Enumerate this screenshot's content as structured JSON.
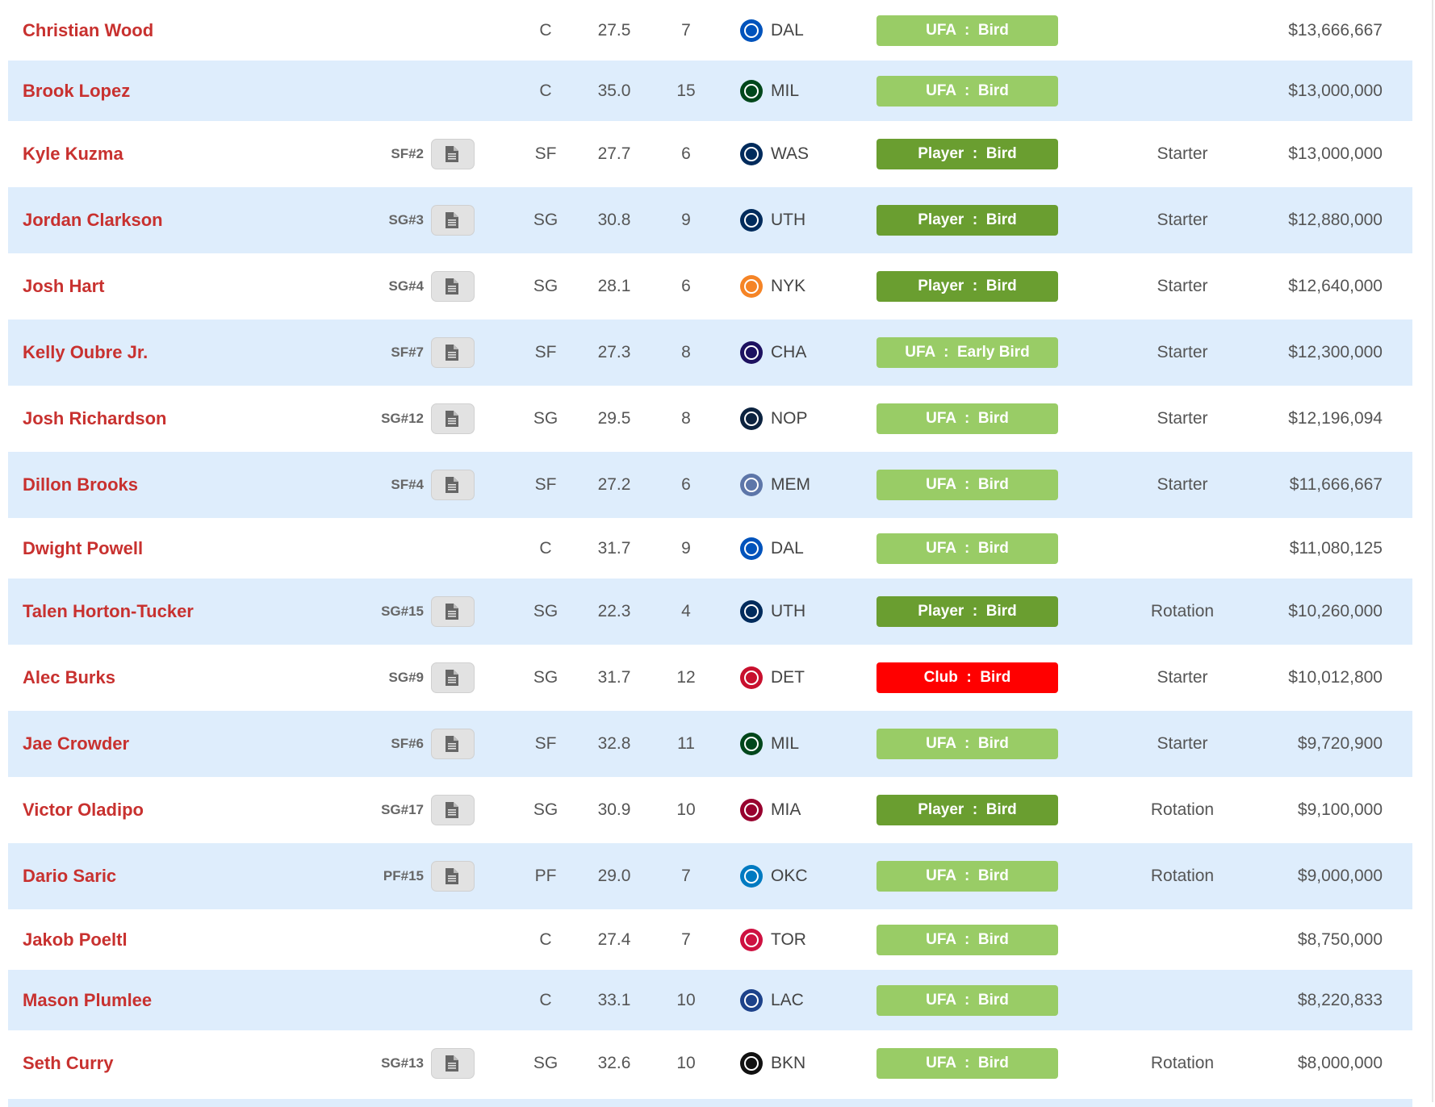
{
  "colors": {
    "name": "#c8312f",
    "stripe": "#deedfc",
    "ufa": "#99cc66",
    "player": "#6a9e30",
    "club": "#ff0000"
  },
  "doc_icon": "document-icon",
  "players": [
    {
      "name": "Christian Wood",
      "rank": "",
      "pos": "C",
      "age": "27.5",
      "exp": "7",
      "team": "DAL",
      "badge": "UFA  :  Bird",
      "badge_type": "ufa",
      "role": "",
      "salary": "$13,666,667"
    },
    {
      "name": "Brook Lopez",
      "rank": "",
      "pos": "C",
      "age": "35.0",
      "exp": "15",
      "team": "MIL",
      "badge": "UFA  :  Bird",
      "badge_type": "ufa",
      "role": "",
      "salary": "$13,000,000"
    },
    {
      "name": "Kyle Kuzma",
      "rank": "SF#2",
      "pos": "SF",
      "age": "27.7",
      "exp": "6",
      "team": "WAS",
      "badge": "Player  :  Bird",
      "badge_type": "player",
      "role": "Starter",
      "salary": "$13,000,000"
    },
    {
      "name": "Jordan Clarkson",
      "rank": "SG#3",
      "pos": "SG",
      "age": "30.8",
      "exp": "9",
      "team": "UTH",
      "badge": "Player  :  Bird",
      "badge_type": "player",
      "role": "Starter",
      "salary": "$12,880,000"
    },
    {
      "name": "Josh Hart",
      "rank": "SG#4",
      "pos": "SG",
      "age": "28.1",
      "exp": "6",
      "team": "NYK",
      "badge": "Player  :  Bird",
      "badge_type": "player",
      "role": "Starter",
      "salary": "$12,640,000"
    },
    {
      "name": "Kelly Oubre Jr.",
      "rank": "SF#7",
      "pos": "SF",
      "age": "27.3",
      "exp": "8",
      "team": "CHA",
      "badge": "UFA  :  Early Bird",
      "badge_type": "ufa",
      "role": "Starter",
      "salary": "$12,300,000"
    },
    {
      "name": "Josh Richardson",
      "rank": "SG#12",
      "pos": "SG",
      "age": "29.5",
      "exp": "8",
      "team": "NOP",
      "badge": "UFA  :  Bird",
      "badge_type": "ufa",
      "role": "Starter",
      "salary": "$12,196,094"
    },
    {
      "name": "Dillon Brooks",
      "rank": "SF#4",
      "pos": "SF",
      "age": "27.2",
      "exp": "6",
      "team": "MEM",
      "badge": "UFA  :  Bird",
      "badge_type": "ufa",
      "role": "Starter",
      "salary": "$11,666,667"
    },
    {
      "name": "Dwight Powell",
      "rank": "",
      "pos": "C",
      "age": "31.7",
      "exp": "9",
      "team": "DAL",
      "badge": "UFA  :  Bird",
      "badge_type": "ufa",
      "role": "",
      "salary": "$11,080,125"
    },
    {
      "name": "Talen Horton-Tucker",
      "rank": "SG#15",
      "pos": "SG",
      "age": "22.3",
      "exp": "4",
      "team": "UTH",
      "badge": "Player  :  Bird",
      "badge_type": "player",
      "role": "Rotation",
      "salary": "$10,260,000"
    },
    {
      "name": "Alec Burks",
      "rank": "SG#9",
      "pos": "SG",
      "age": "31.7",
      "exp": "12",
      "team": "DET",
      "badge": "Club  :  Bird",
      "badge_type": "club",
      "role": "Starter",
      "salary": "$10,012,800"
    },
    {
      "name": "Jae Crowder",
      "rank": "SF#6",
      "pos": "SF",
      "age": "32.8",
      "exp": "11",
      "team": "MIL",
      "badge": "UFA  :  Bird",
      "badge_type": "ufa",
      "role": "Starter",
      "salary": "$9,720,900"
    },
    {
      "name": "Victor Oladipo",
      "rank": "SG#17",
      "pos": "SG",
      "age": "30.9",
      "exp": "10",
      "team": "MIA",
      "badge": "Player  :  Bird",
      "badge_type": "player",
      "role": "Rotation",
      "salary": "$9,100,000"
    },
    {
      "name": "Dario Saric",
      "rank": "PF#15",
      "pos": "PF",
      "age": "29.0",
      "exp": "7",
      "team": "OKC",
      "badge": "UFA  :  Bird",
      "badge_type": "ufa",
      "role": "Rotation",
      "salary": "$9,000,000"
    },
    {
      "name": "Jakob Poeltl",
      "rank": "",
      "pos": "C",
      "age": "27.4",
      "exp": "7",
      "team": "TOR",
      "badge": "UFA  :  Bird",
      "badge_type": "ufa",
      "role": "",
      "salary": "$8,750,000"
    },
    {
      "name": "Mason Plumlee",
      "rank": "",
      "pos": "C",
      "age": "33.1",
      "exp": "10",
      "team": "LAC",
      "badge": "UFA  :  Bird",
      "badge_type": "ufa",
      "role": "",
      "salary": "$8,220,833"
    },
    {
      "name": "Seth Curry",
      "rank": "SG#13",
      "pos": "SG",
      "age": "32.6",
      "exp": "10",
      "team": "BKN",
      "badge": "UFA  :  Bird",
      "badge_type": "ufa",
      "role": "Rotation",
      "salary": "$8,000,000"
    }
  ],
  "team_colors": {
    "DAL": "#0053bc",
    "MIL": "#00471b",
    "WAS": "#002b5c",
    "UTH": "#002b5c",
    "NYK": "#f58426",
    "CHA": "#1d1160",
    "NOP": "#0c2340",
    "MEM": "#5d76a9",
    "DET": "#c8102e",
    "MIA": "#98002e",
    "OKC": "#007ac1",
    "TOR": "#ce1141",
    "LAC": "#1d428a",
    "BKN": "#111111"
  }
}
